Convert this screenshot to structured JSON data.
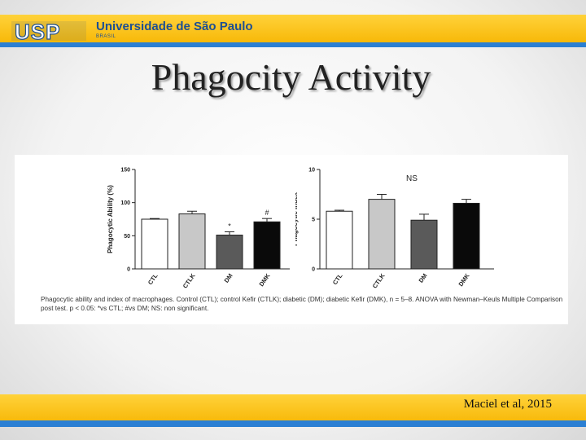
{
  "header": {
    "university": "Universidade de São Paulo",
    "country": "BRASIL",
    "logo_text": "USP"
  },
  "slide": {
    "title": "Phagocity Activity",
    "citation": "Maciel et al, 2015"
  },
  "figure": {
    "caption": "Phagocytic ability and index of macrophages. Control (CTL); control Kefir (CTLK); diabetic (DM); diabetic Kefir (DMK), n = 5–8. ANOVA with Newman–Keuls Multiple Comparison post test. p < 0.05: *vs CTL; #vs DM; NS: non significant."
  },
  "colors": {
    "brand_yellow": "#f6b400",
    "brand_blue": "#2b7fd3",
    "bar_ctl": "#ffffff",
    "bar_ctlk": "#c8c8c8",
    "bar_dm": "#5a5a5a",
    "bar_dmk": "#0a0a0a"
  },
  "chart_data": [
    {
      "type": "bar",
      "categories": [
        "CTL",
        "CTLK",
        "DM",
        "DMK"
      ],
      "values": [
        75,
        83,
        51,
        71
      ],
      "errors": [
        1,
        4,
        5,
        5
      ],
      "annotations": [
        "",
        "",
        "*",
        "#"
      ],
      "title": "",
      "xlabel": "",
      "ylabel": "Phagocytic Ability (%)",
      "ylim": [
        0,
        150
      ],
      "yticks": [
        0,
        50,
        100,
        150
      ],
      "grid": false
    },
    {
      "type": "bar",
      "categories": [
        "CTL",
        "CTLK",
        "DM",
        "DMK"
      ],
      "values": [
        5.8,
        7.0,
        4.9,
        6.6
      ],
      "errors": [
        0.1,
        0.5,
        0.6,
        0.4
      ],
      "annotations": [
        "",
        "",
        "",
        ""
      ],
      "note": "NS",
      "title": "",
      "xlabel": "",
      "ylabel": "Phagocytic Index",
      "ylim": [
        0,
        10
      ],
      "yticks": [
        0,
        5,
        10
      ],
      "grid": false
    }
  ]
}
